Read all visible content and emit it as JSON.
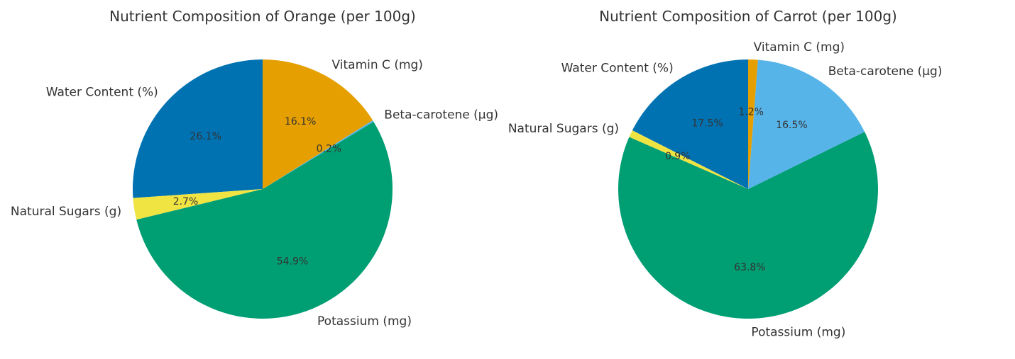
{
  "chart_data": [
    {
      "type": "pie",
      "title": "Nutrient Composition of Orange (per 100g)",
      "categories": [
        "Water Content (%)",
        "Natural Sugars (g)",
        "Potassium (mg)",
        "Beta-carotene (µg)",
        "Vitamin C (mg)"
      ],
      "values": [
        26.1,
        2.7,
        54.9,
        0.2,
        16.1
      ],
      "labels_pct": [
        "26.1%",
        "2.7%",
        "54.9%",
        "0.2%",
        "16.1%"
      ],
      "colors": [
        "#0072b2",
        "#f0e442",
        "#009e73",
        "#56b4e9",
        "#e69f00"
      ],
      "start_angle": 90,
      "direction": "counterclockwise",
      "center": [
        370,
        267
      ],
      "radius": 183
    },
    {
      "type": "pie",
      "title": "Nutrient Composition of Carrot (per 100g)",
      "categories": [
        "Water Content (%)",
        "Natural Sugars (g)",
        "Potassium (mg)",
        "Beta-carotene (µg)",
        "Vitamin C (mg)"
      ],
      "values": [
        17.5,
        0.9,
        63.8,
        16.5,
        1.2
      ],
      "labels_pct": [
        "17.5%",
        "0.9%",
        "63.8%",
        "16.5%",
        "1.2%"
      ],
      "colors": [
        "#0072b2",
        "#f0e442",
        "#009e73",
        "#56b4e9",
        "#e69f00"
      ],
      "start_angle": 90,
      "direction": "counterclockwise",
      "center": [
        1054,
        267
      ],
      "radius": 183
    }
  ]
}
